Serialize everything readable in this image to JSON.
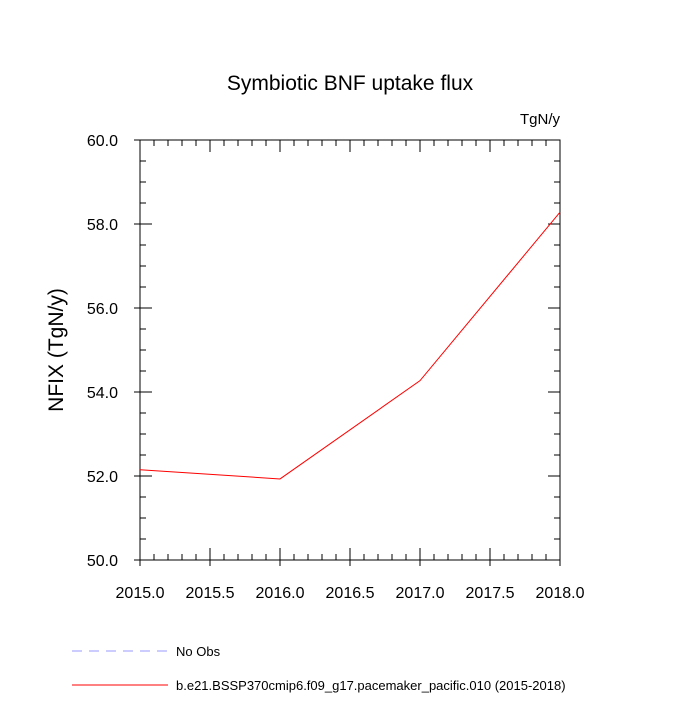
{
  "chart_data": {
    "type": "line",
    "title": "Symbiotic BNF uptake flux",
    "units_label": "TgN/y",
    "ylabel": "NFIX  (TgN/y)",
    "xlabel": "",
    "xlim": [
      2015.0,
      2018.0
    ],
    "ylim": [
      50.0,
      60.0
    ],
    "x_ticks": [
      "2015.0",
      "2015.5",
      "2016.0",
      "2016.5",
      "2017.0",
      "2017.5",
      "2018.0"
    ],
    "y_ticks": [
      "50.0",
      "52.0",
      "54.0",
      "56.0",
      "58.0",
      "60.0"
    ],
    "x_tick_values": [
      2015.0,
      2015.5,
      2016.0,
      2016.5,
      2017.0,
      2017.5,
      2018.0
    ],
    "y_tick_values": [
      50.0,
      52.0,
      54.0,
      56.0,
      58.0,
      60.0
    ],
    "grid": false,
    "legend_placement": "bottom-left",
    "series": [
      {
        "name": "b.e21.BSSP370cmip6.f09_g17.pacemaker_pacific.010 (2015-2018)",
        "color": "#ff0000",
        "dash": "solid",
        "x": [
          2015.0,
          2016.0,
          2017.0,
          2018.0
        ],
        "y": [
          52.15,
          51.93,
          54.27,
          58.28
        ]
      }
    ],
    "legend": [
      {
        "label": "No Obs",
        "color": "#9999ff",
        "dash": "dashed"
      },
      {
        "label": "b.e21.BSSP370cmip6.f09_g17.pacemaker_pacific.010 (2015-2018)",
        "color": "#ff0000",
        "dash": "solid"
      }
    ]
  }
}
